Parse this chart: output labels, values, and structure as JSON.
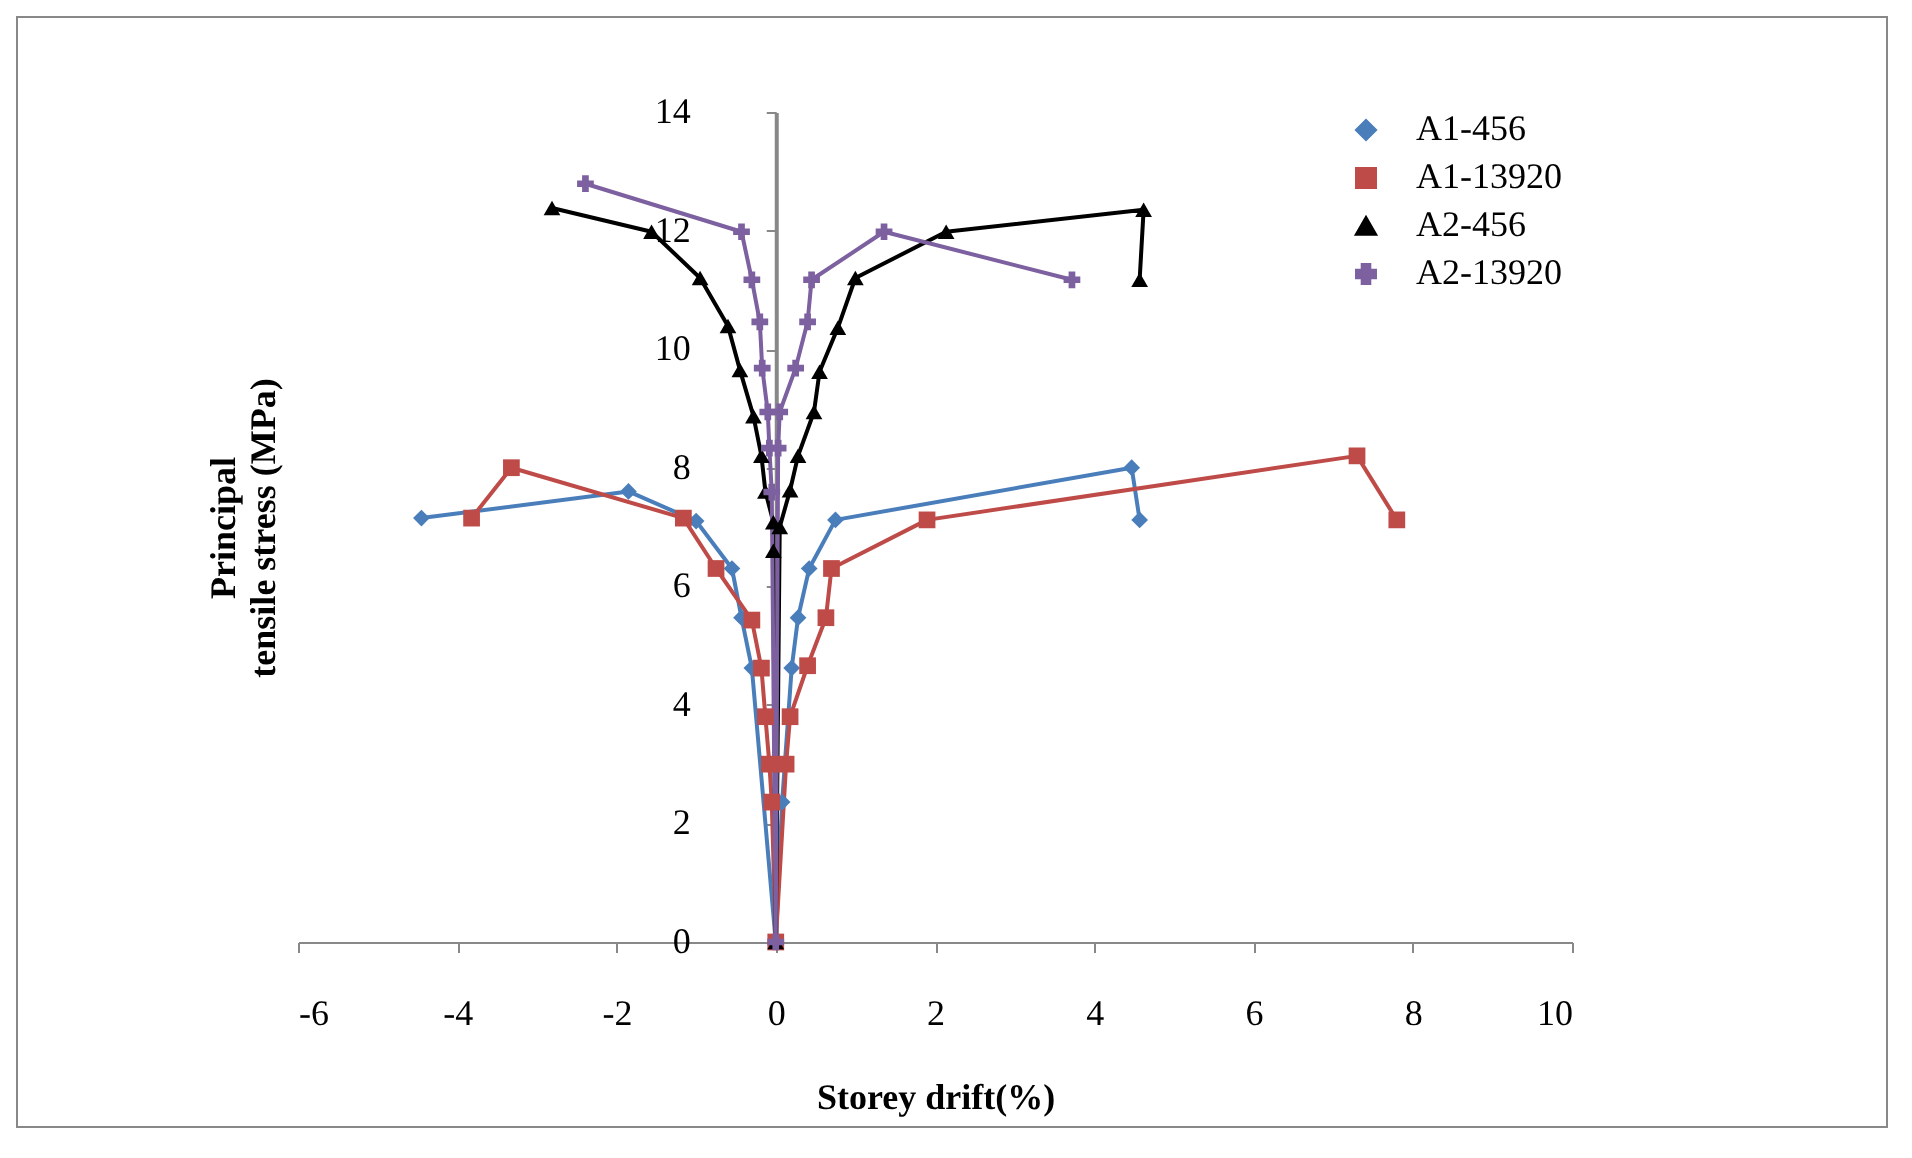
{
  "chart_data": {
    "type": "line",
    "xlabel": "Storey drift(%)",
    "ylabel": "Principal\ntensile stress (MPa)",
    "xlim": [
      -6,
      10
    ],
    "xticks": [
      -6,
      -4,
      -2,
      0,
      2,
      4,
      6,
      8,
      10
    ],
    "ylim": [
      0,
      14
    ],
    "yticks": [
      0,
      2,
      4,
      6,
      8,
      10,
      12,
      14
    ],
    "grid": false,
    "legend": "top right",
    "line_style": "solid",
    "series": [
      {
        "name": "A1-456",
        "color": "#4a7ebb",
        "marker": "diamond",
        "x": [
          -4.45,
          -1.85,
          -1.0,
          -0.55,
          -0.43,
          -0.3,
          0,
          0.08,
          0.2,
          0.28,
          0.42,
          0.75,
          4.47,
          4.57
        ],
        "values": [
          7.15,
          7.6,
          7.1,
          6.3,
          5.47,
          4.62,
          0,
          2.36,
          4.62,
          5.47,
          6.3,
          7.12,
          8.0,
          7.12
        ]
      },
      {
        "name": "A1-13920",
        "color": "#be4b48",
        "marker": "square",
        "x": [
          -3.82,
          -3.32,
          -1.16,
          -0.75,
          -0.3,
          -0.18,
          -0.13,
          -0.08,
          -0.05,
          0,
          0.13,
          0.18,
          0.4,
          0.63,
          0.7,
          1.9,
          7.3,
          7.8
        ],
        "values": [
          7.15,
          8.0,
          7.15,
          6.3,
          5.43,
          4.62,
          3.8,
          3.0,
          2.36,
          0,
          3.0,
          3.8,
          4.66,
          5.47,
          6.3,
          7.12,
          8.2,
          7.12
        ]
      },
      {
        "name": "A2-456",
        "color": "#000000",
        "marker": "triangle",
        "x": [
          -2.81,
          -1.56,
          -0.95,
          -0.6,
          -0.45,
          -0.28,
          -0.18,
          -0.13,
          -0.03,
          -0.03,
          0,
          0.05,
          0.18,
          0.28,
          0.48,
          0.55,
          0.78,
          1.0,
          2.14,
          4.62,
          4.57
        ],
        "values": [
          12.38,
          11.98,
          11.2,
          10.39,
          9.65,
          8.87,
          8.2,
          7.6,
          7.08,
          6.6,
          0,
          7.0,
          7.62,
          8.2,
          8.94,
          9.62,
          10.36,
          11.2,
          11.98,
          12.35,
          11.17
        ]
      },
      {
        "name": "A2-13920",
        "color": "#7d60a0",
        "marker": "cross",
        "x": [
          -2.39,
          -0.43,
          -0.3,
          -0.2,
          -0.17,
          -0.1,
          -0.08,
          -0.05,
          0,
          0.03,
          0.05,
          0.25,
          0.4,
          0.45,
          1.36,
          3.72
        ],
        "values": [
          12.79,
          11.98,
          11.17,
          10.46,
          9.68,
          8.94,
          8.33,
          7.59,
          0,
          8.33,
          8.94,
          9.68,
          10.46,
          11.17,
          11.98,
          11.17
        ]
      }
    ]
  }
}
